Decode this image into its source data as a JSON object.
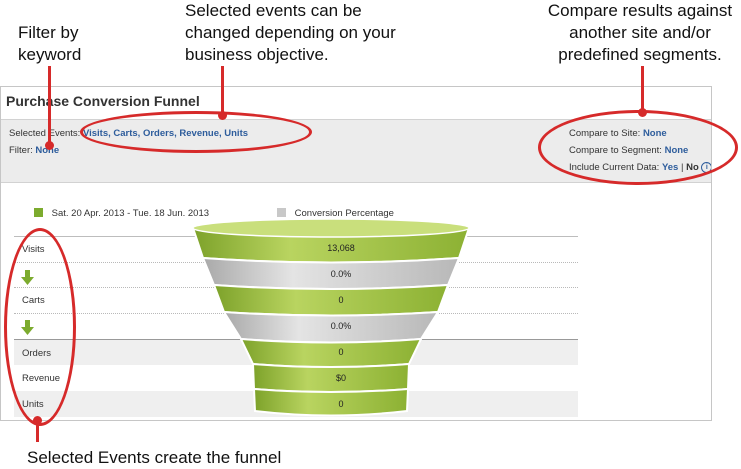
{
  "annotations": {
    "filter_line1": "Filter by",
    "filter_line2": "keyword",
    "selected_line1": "Selected events can be",
    "selected_line2": "changed depending on your",
    "selected_line3": "business objective.",
    "compare_line1": "Compare results against",
    "compare_line2": "another site and/or",
    "compare_line3": "predefined segments.",
    "funnel_note": "Selected Events create the funnel"
  },
  "panel": {
    "title": "Purchase Conversion Funnel",
    "selected_events_label": "Selected Events:",
    "selected_events_value": "Visits, Carts, Orders, Revenue, Units",
    "filter_label": "Filter:",
    "filter_value": "None",
    "compare_site_label": "Compare to Site:",
    "compare_site_value": "None",
    "compare_segment_label": "Compare to Segment:",
    "compare_segment_value": "None",
    "include_label": "Include Current Data:",
    "include_yes": "Yes",
    "include_sep": "|",
    "include_no": "No",
    "info_glyph": "i"
  },
  "legend": {
    "date_range": "Sat. 20 Apr. 2013 - Tue. 18 Jun. 2013",
    "conversion": "Conversion Percentage"
  },
  "events": [
    "Visits",
    "Carts",
    "Orders",
    "Revenue",
    "Units"
  ],
  "funnel_values": {
    "visits": "13,068",
    "conv1": "0.0%",
    "carts": "0",
    "conv2": "0.0%",
    "orders": "0",
    "revenue": "$0",
    "units": "0"
  },
  "colors": {
    "annotation_red": "#d62a2a",
    "funnel_green": "#9cbd3f",
    "funnel_gray": "#c8c8c8",
    "link_blue": "#2e5d9c",
    "arrow_green": "#7cab2e"
  },
  "icons": [
    "down-arrow-icon",
    "info-icon"
  ]
}
